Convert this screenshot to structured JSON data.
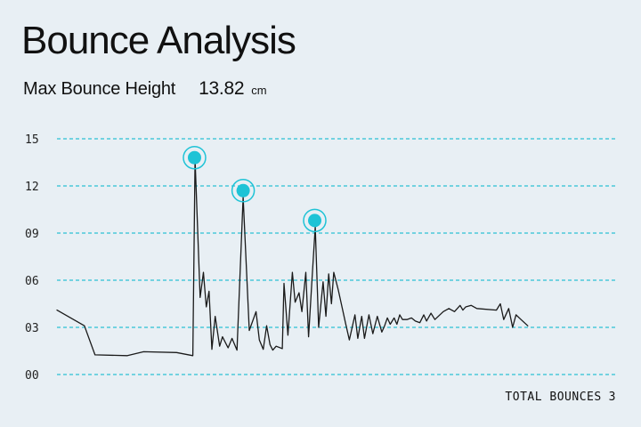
{
  "title": "Bounce Analysis",
  "metric": {
    "label": "Max Bounce Height",
    "value": "13.82",
    "unit": "cm"
  },
  "footer": {
    "label": "TOTAL BOUNCES",
    "value": "3"
  },
  "colors": {
    "background": "#e8eff4",
    "line": "#1a1a1a",
    "gridline": "#2bc0d4",
    "peak_marker": "#1ec3d6",
    "text": "#111111"
  },
  "chart_data": {
    "type": "line",
    "ylim": [
      0,
      15
    ],
    "yticks": [
      "00",
      "03",
      "06",
      "09",
      "12",
      "15"
    ],
    "grid": true,
    "xlabel": "",
    "ylabel": "",
    "series": [
      {
        "values": [
          [
            0,
            4.1
          ],
          [
            4.9,
            3.1
          ],
          [
            6.8,
            1.25
          ],
          [
            12.6,
            1.2
          ],
          [
            15.5,
            1.45
          ],
          [
            21.4,
            1.4
          ],
          [
            24.3,
            1.2
          ],
          [
            24.7,
            13.7
          ],
          [
            25.6,
            4.9
          ],
          [
            26.2,
            6.5
          ],
          [
            26.7,
            4.3
          ],
          [
            27.2,
            5.3
          ],
          [
            27.7,
            1.6
          ],
          [
            28.3,
            3.7
          ],
          [
            29.1,
            1.8
          ],
          [
            29.6,
            2.4
          ],
          [
            30.6,
            1.7
          ],
          [
            31.3,
            2.3
          ],
          [
            32.2,
            1.55
          ],
          [
            33.3,
            11.3
          ],
          [
            34.4,
            2.8
          ],
          [
            35.6,
            4.0
          ],
          [
            36.2,
            2.2
          ],
          [
            36.9,
            1.6
          ],
          [
            37.5,
            3.1
          ],
          [
            38.1,
            1.9
          ],
          [
            38.6,
            1.55
          ],
          [
            39.2,
            1.8
          ],
          [
            40.3,
            1.65
          ],
          [
            40.6,
            5.8
          ],
          [
            41.3,
            2.5
          ],
          [
            42.1,
            6.5
          ],
          [
            42.6,
            4.6
          ],
          [
            43.3,
            5.2
          ],
          [
            43.8,
            4.0
          ],
          [
            44.5,
            6.5
          ],
          [
            45.0,
            2.4
          ],
          [
            45.6,
            6.0
          ],
          [
            46.2,
            9.4
          ],
          [
            46.8,
            3.0
          ],
          [
            47.6,
            5.9
          ],
          [
            48.1,
            3.7
          ],
          [
            48.6,
            6.4
          ],
          [
            49.1,
            4.5
          ],
          [
            49.5,
            6.5
          ],
          [
            50.3,
            5.4
          ],
          [
            51.6,
            3.3
          ],
          [
            52.3,
            2.2
          ],
          [
            53.3,
            3.8
          ],
          [
            53.8,
            2.3
          ],
          [
            54.5,
            3.7
          ],
          [
            55.0,
            2.3
          ],
          [
            55.8,
            3.8
          ],
          [
            56.5,
            2.6
          ],
          [
            57.3,
            3.7
          ],
          [
            58.1,
            2.7
          ],
          [
            58.6,
            3.1
          ],
          [
            59.1,
            3.6
          ],
          [
            59.6,
            3.2
          ],
          [
            60.3,
            3.6
          ],
          [
            60.8,
            3.2
          ],
          [
            61.3,
            3.8
          ],
          [
            61.8,
            3.5
          ],
          [
            62.6,
            3.5
          ],
          [
            63.4,
            3.6
          ],
          [
            64.1,
            3.4
          ],
          [
            64.9,
            3.3
          ],
          [
            65.6,
            3.8
          ],
          [
            66.1,
            3.4
          ],
          [
            66.9,
            3.9
          ],
          [
            67.6,
            3.5
          ],
          [
            69.1,
            4.0
          ],
          [
            70.1,
            4.2
          ],
          [
            71.1,
            4.0
          ],
          [
            72.1,
            4.4
          ],
          [
            72.6,
            4.1
          ],
          [
            73.1,
            4.3
          ],
          [
            74.1,
            4.4
          ],
          [
            75.1,
            4.2
          ],
          [
            78.6,
            4.1
          ],
          [
            79.3,
            4.5
          ],
          [
            79.9,
            3.5
          ],
          [
            80.8,
            4.2
          ],
          [
            81.5,
            3.0
          ],
          [
            82.1,
            3.8
          ],
          [
            83.0,
            3.5
          ],
          [
            84.2,
            3.1
          ]
        ]
      }
    ],
    "peaks": [
      {
        "x": 24.6,
        "y": 13.8
      },
      {
        "x": 33.3,
        "y": 11.7
      },
      {
        "x": 46.1,
        "y": 9.8
      }
    ]
  }
}
